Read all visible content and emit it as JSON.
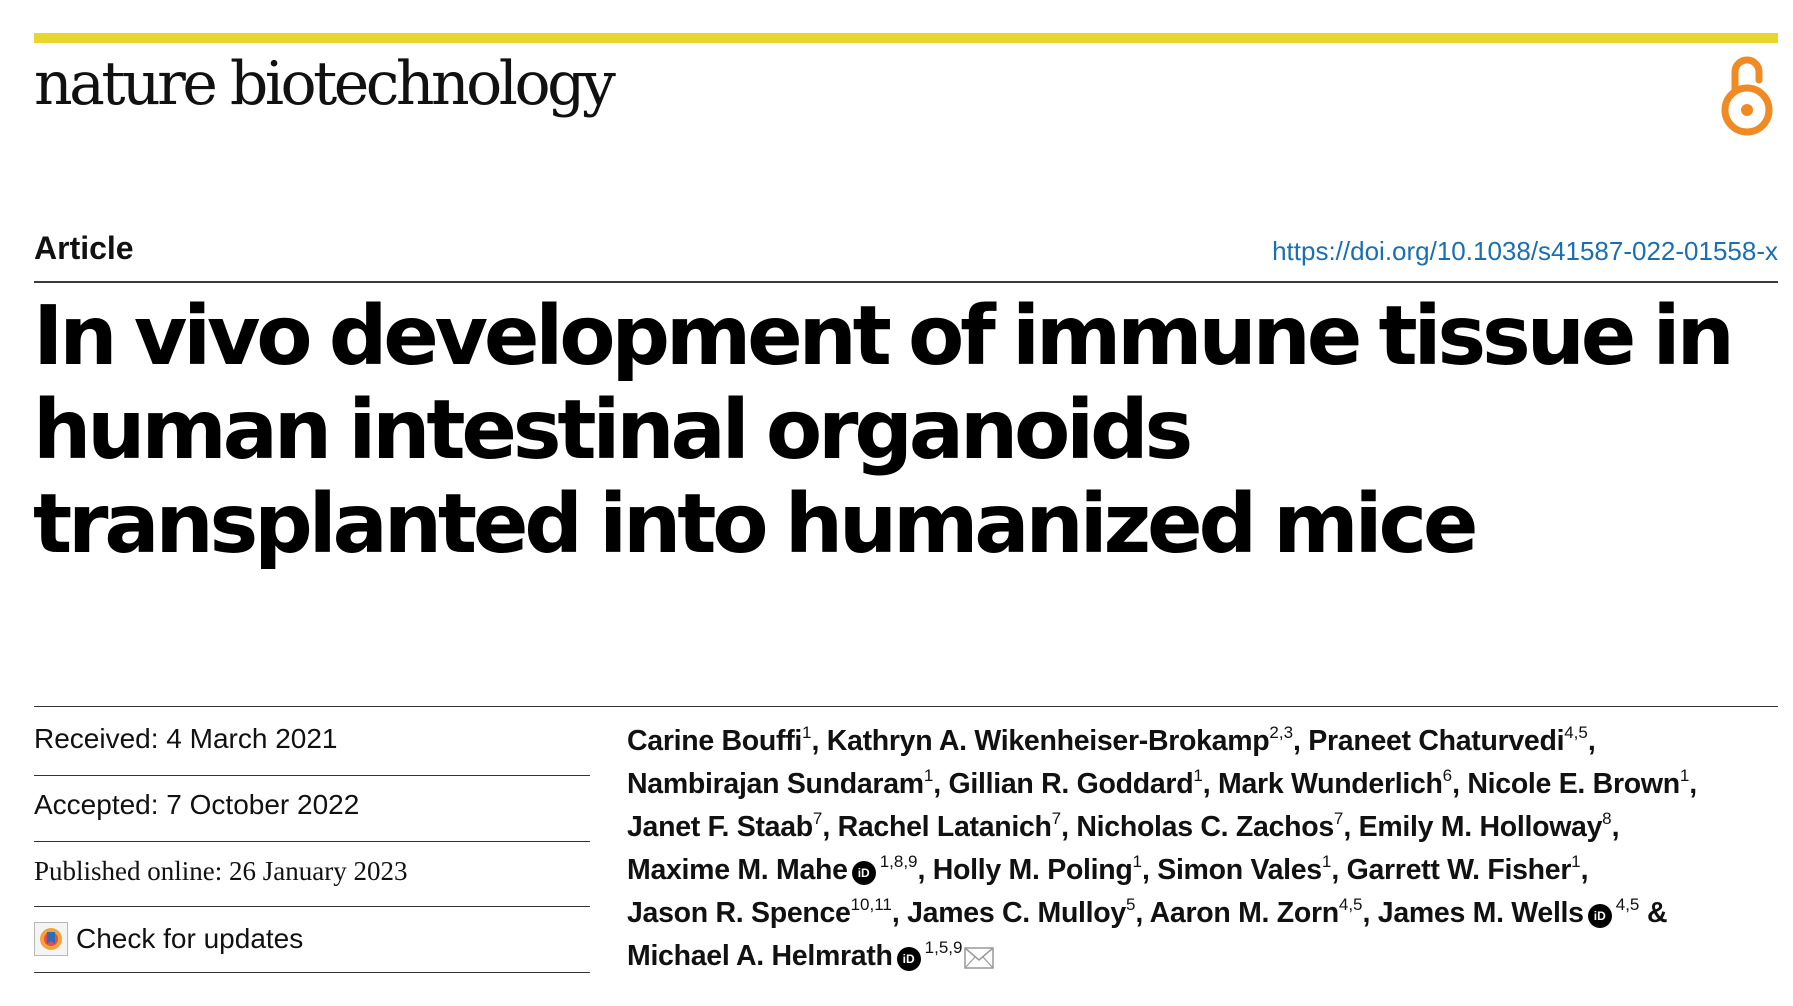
{
  "journal": {
    "name": "nature biotechnology"
  },
  "header": {
    "article_type": "Article",
    "doi": "https://doi.org/10.1038/s41587-022-01558-x",
    "open_access_icon": "open-access-icon"
  },
  "title": "In vivo development of immune tissue in human intestinal organoids transplanted into humanized mice",
  "dates": {
    "received": "Received: 4 March 2021",
    "accepted": "Accepted: 7 October 2022",
    "published": "Published online: 26 January 2023"
  },
  "check_updates": {
    "label": "Check for updates",
    "icon": "check-for-updates-icon"
  },
  "authors": [
    {
      "name": "Carine Bouffi",
      "sup": "1"
    },
    {
      "name": "Kathryn A. Wikenheiser-Brokamp",
      "sup": "2,3"
    },
    {
      "name": "Praneet Chaturvedi",
      "sup": "4,5"
    },
    {
      "name": "Nambirajan Sundaram",
      "sup": "1"
    },
    {
      "name": "Gillian R. Goddard",
      "sup": "1"
    },
    {
      "name": "Mark Wunderlich",
      "sup": "6"
    },
    {
      "name": "Nicole E. Brown",
      "sup": "1"
    },
    {
      "name": "Janet F. Staab",
      "sup": "7"
    },
    {
      "name": "Rachel Latanich",
      "sup": "7"
    },
    {
      "name": "Nicholas C. Zachos",
      "sup": "7"
    },
    {
      "name": "Emily M. Holloway",
      "sup": "8"
    },
    {
      "name": "Maxime M. Mahe",
      "sup": "1,8,9"
    },
    {
      "name": "Holly M. Poling",
      "sup": "1"
    },
    {
      "name": "Simon Vales",
      "sup": "1"
    },
    {
      "name": "Garrett W. Fisher",
      "sup": "1"
    },
    {
      "name": "Jason R. Spence",
      "sup": "10,11"
    },
    {
      "name": "James C. Mulloy",
      "sup": "5"
    },
    {
      "name": "Aaron M. Zorn",
      "sup": "4,5"
    },
    {
      "name": "James M. Wells",
      "sup": "4,5"
    },
    {
      "name": "Michael A. Helmrath",
      "sup": "1,5,9"
    }
  ],
  "separators": {
    "comma": ", ",
    "and": " & "
  },
  "orcid_label": "iD",
  "colors": {
    "top_bar": "#e7d62b",
    "doi_link": "#1a6fb3",
    "open_access": "#f08a24",
    "text": "#111111"
  }
}
